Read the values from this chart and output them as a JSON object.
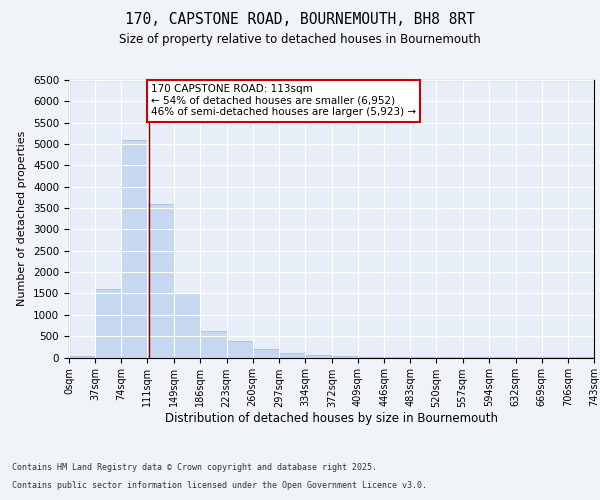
{
  "title": "170, CAPSTONE ROAD, BOURNEMOUTH, BH8 8RT",
  "subtitle": "Size of property relative to detached houses in Bournemouth",
  "xlabel": "Distribution of detached houses by size in Bournemouth",
  "ylabel": "Number of detached properties",
  "property_size": 113,
  "property_label": "170 CAPSTONE ROAD: 113sqm",
  "pct_smaller": 54,
  "pct_larger": 46,
  "n_smaller": 6952,
  "n_larger": 5923,
  "bar_color": "#c5d8f0",
  "bar_edge_color": "#a0b8d8",
  "vline_color": "#8b0000",
  "annotation_box_color": "#ffffff",
  "annotation_box_edge": "#cc0000",
  "background_color": "#e8eef8",
  "grid_color": "#ffffff",
  "fig_background": "#f0f4f8",
  "bin_edges": [
    0,
    37,
    74,
    111,
    149,
    186,
    223,
    260,
    297,
    334,
    372,
    409,
    446,
    483,
    520,
    557,
    594,
    632,
    669,
    706,
    743
  ],
  "bar_heights": [
    40,
    1600,
    5100,
    3600,
    1500,
    620,
    390,
    200,
    100,
    60,
    40,
    20,
    15,
    10,
    8,
    5,
    4,
    3,
    2,
    2
  ],
  "ylim": [
    0,
    6500
  ],
  "yticks": [
    0,
    500,
    1000,
    1500,
    2000,
    2500,
    3000,
    3500,
    4000,
    4500,
    5000,
    5500,
    6000,
    6500
  ],
  "footer_line1": "Contains HM Land Registry data © Crown copyright and database right 2025.",
  "footer_line2": "Contains public sector information licensed under the Open Government Licence v3.0."
}
